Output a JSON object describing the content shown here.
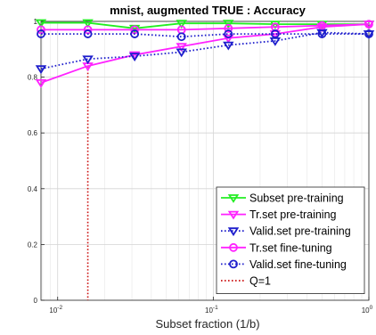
{
  "chart_data": {
    "type": "line",
    "title": "mnist, augmented TRUE : Accuracy",
    "xlabel": "Subset fraction (1/b)",
    "ylabel": "",
    "x_scale": "log",
    "xlim": [
      0.0078125,
      1
    ],
    "ylim": [
      0,
      1
    ],
    "grid": true,
    "legend_position": "bottom-right",
    "x_ticks": [
      {
        "value": 0.01,
        "base": "10",
        "exp": "-2"
      },
      {
        "value": 0.1,
        "base": "10",
        "exp": "-1"
      },
      {
        "value": 1,
        "base": "10",
        "exp": "0"
      }
    ],
    "y_ticks": [
      {
        "value": 0,
        "label": "0"
      },
      {
        "value": 0.2,
        "label": "0.2"
      },
      {
        "value": 0.4,
        "label": "0.4"
      },
      {
        "value": 0.6,
        "label": "0.6"
      },
      {
        "value": 0.8,
        "label": "0.8"
      },
      {
        "value": 1,
        "label": "1"
      }
    ],
    "x": [
      0.0078125,
      0.015625,
      0.03125,
      0.0625,
      0.125,
      0.25,
      0.5,
      1
    ],
    "series": [
      {
        "name": "Subset pre-training",
        "color": "#22ee22",
        "marker": "triangle-down",
        "dash": "solid",
        "values": [
          0.995,
          0.995,
          0.975,
          0.993,
          0.993,
          0.99,
          0.99,
          0.99
        ]
      },
      {
        "name": "Tr.set pre-training",
        "color": "#ff22ff",
        "marker": "triangle-down",
        "dash": "solid",
        "values": [
          0.78,
          0.84,
          0.88,
          0.91,
          0.94,
          0.955,
          0.98,
          0.99
        ]
      },
      {
        "name": "Valid.set pre-training",
        "color": "#1e1ecc",
        "marker": "triangle-down",
        "dash": "dotted",
        "values": [
          0.83,
          0.865,
          0.875,
          0.89,
          0.915,
          0.93,
          0.96,
          0.955
        ]
      },
      {
        "name": "Tr.set fine-tuning",
        "color": "#ff22ff",
        "marker": "circle",
        "dash": "solid",
        "values": [
          0.97,
          0.97,
          0.97,
          0.97,
          0.975,
          0.98,
          0.985,
          0.99
        ]
      },
      {
        "name": "Valid.set fine-tuning",
        "color": "#1e1ecc",
        "marker": "circle",
        "dash": "dotted",
        "values": [
          0.955,
          0.955,
          0.955,
          0.945,
          0.955,
          0.955,
          0.955,
          0.955
        ]
      }
    ],
    "reference_line": {
      "name": "Q=1",
      "x": 0.015625,
      "color": "#cc1111",
      "dash": "dotted"
    }
  }
}
